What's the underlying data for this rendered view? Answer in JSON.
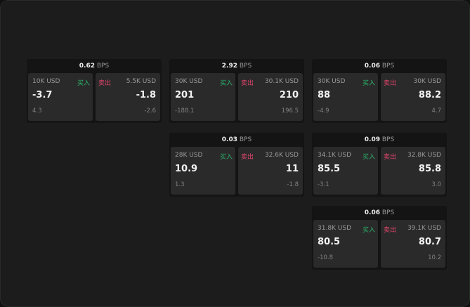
{
  "unit": "BPS",
  "buy_label": "买入",
  "sell_label": "卖出",
  "colors": {
    "buy": "#2bb36b",
    "sell": "#e0456b"
  },
  "cards": [
    {
      "spread": "0.62",
      "bid_size": "10K USD",
      "bid": "-3.7",
      "bid_change": "4.3",
      "ask_size": "5.5K USD",
      "ask": "-1.8",
      "ask_change": "-2.6"
    },
    {
      "spread": "2.92",
      "bid_size": "30K USD",
      "bid": "201",
      "bid_change": "-188.1",
      "ask_size": "30.1K USD",
      "ask": "210",
      "ask_change": "196.5"
    },
    {
      "spread": "0.06",
      "bid_size": "30K USD",
      "bid": "88",
      "bid_change": "-4.9",
      "ask_size": "30K USD",
      "ask": "88.2",
      "ask_change": "4.7"
    },
    {
      "spread": "0.03",
      "bid_size": "28K USD",
      "bid": "10.9",
      "bid_change": "1.3",
      "ask_size": "32.6K USD",
      "ask": "11",
      "ask_change": "-1.8"
    },
    {
      "spread": "0.09",
      "bid_size": "34.1K USD",
      "bid": "85.5",
      "bid_change": "-3.1",
      "ask_size": "32.8K USD",
      "ask": "85.8",
      "ask_change": "3.0"
    },
    {
      "spread": "0.06",
      "bid_size": "31.8K USD",
      "bid": "80.5",
      "bid_change": "-10.8",
      "ask_size": "39.1K USD",
      "ask": "80.7",
      "ask_change": "10.2"
    }
  ]
}
